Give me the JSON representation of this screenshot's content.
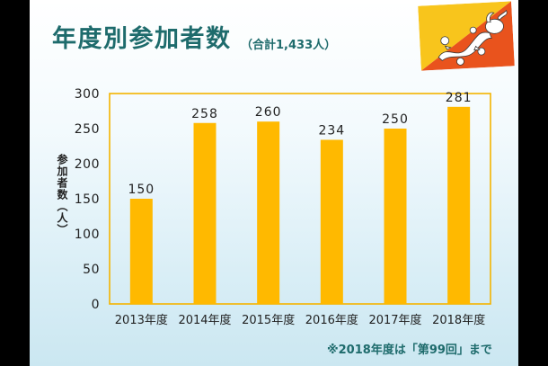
{
  "colors": {
    "title": "#1e6b6c",
    "bar": "#ffb900",
    "plot_border": "#f4b400",
    "axis_text": "#222222"
  },
  "flag": {
    "icon": "bhutan-flag-icon",
    "colors": {
      "yellow": "#f8c51c",
      "orange": "#e9531d",
      "dragon": "#ffffff"
    }
  },
  "chart_data": {
    "type": "bar",
    "title": "年度別参加者数",
    "subtitle": "（合計1,433人）",
    "ylabel": "参加者数（人）",
    "categories": [
      "2013年度",
      "2014年度",
      "2015年度",
      "2016年度",
      "2017年度",
      "2018年度"
    ],
    "values": [
      150,
      258,
      260,
      234,
      250,
      281
    ],
    "ylim": [
      0,
      300
    ],
    "yticks": [
      0,
      50,
      100,
      150,
      200,
      250,
      300
    ],
    "grid": false,
    "legend": "none",
    "data_labels": true,
    "annotations": [
      "※2018年度は「第99回」まで"
    ]
  }
}
